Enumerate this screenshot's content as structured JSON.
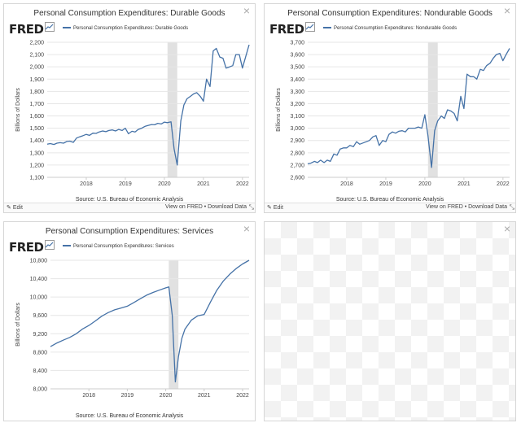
{
  "panels": [
    {
      "title": "Personal Consumption Expenditures: Durable Goods",
      "logo_text": "FRED",
      "legend": "Personal Consumption Expenditures: Durable Goods",
      "source": "Source: U.S. Bureau of Economic Analysis",
      "edit_label": "Edit",
      "view_label": "View on FRED",
      "separator": " • ",
      "download_label": "Download Data",
      "close_icon": "×",
      "chart_data": {
        "type": "line",
        "ylabel": "Billions of Dollars",
        "ylim": [
          1100,
          2200
        ],
        "yticks": [
          1100,
          1200,
          1300,
          1400,
          1500,
          1600,
          1700,
          1800,
          1900,
          2000,
          2100,
          2200
        ],
        "ytick_labels": [
          "1,100",
          "1,200",
          "1,300",
          "1,400",
          "1,500",
          "1,600",
          "1,700",
          "1,800",
          "1,900",
          "2,000",
          "2,100",
          "2,200"
        ],
        "xlim": [
          2017.0,
          2022.17
        ],
        "xticks": [
          2018,
          2019,
          2020,
          2021,
          2022
        ],
        "recession": [
          2020.08,
          2020.33
        ],
        "series": [
          {
            "color": "#4572a7",
            "x": [
              2017.0,
              2017.08,
              2017.17,
              2017.25,
              2017.33,
              2017.42,
              2017.5,
              2017.58,
              2017.67,
              2017.75,
              2017.83,
              2017.92,
              2018.0,
              2018.08,
              2018.17,
              2018.25,
              2018.33,
              2018.42,
              2018.5,
              2018.58,
              2018.67,
              2018.75,
              2018.83,
              2018.92,
              2019.0,
              2019.08,
              2019.17,
              2019.25,
              2019.33,
              2019.42,
              2019.5,
              2019.58,
              2019.67,
              2019.75,
              2019.83,
              2019.92,
              2020.0,
              2020.08,
              2020.17,
              2020.25,
              2020.33,
              2020.42,
              2020.5,
              2020.58,
              2020.67,
              2020.75,
              2020.83,
              2020.92,
              2021.0,
              2021.08,
              2021.17,
              2021.25,
              2021.33,
              2021.42,
              2021.5,
              2021.58,
              2021.67,
              2021.75,
              2021.83,
              2021.92,
              2022.0,
              2022.08,
              2022.17
            ],
            "y": [
              1370,
              1375,
              1368,
              1378,
              1382,
              1378,
              1392,
              1395,
              1385,
              1420,
              1430,
              1440,
              1450,
              1442,
              1460,
              1458,
              1470,
              1478,
              1472,
              1482,
              1486,
              1478,
              1490,
              1482,
              1500,
              1455,
              1475,
              1470,
              1490,
              1500,
              1515,
              1522,
              1530,
              1528,
              1540,
              1535,
              1550,
              1545,
              1552,
              1330,
              1200,
              1560,
              1690,
              1740,
              1760,
              1780,
              1790,
              1760,
              1720,
              1900,
              1840,
              2130,
              2150,
              2080,
              2070,
              1990,
              2000,
              2010,
              2100,
              2100,
              1990,
              2080,
              2180
            ]
          }
        ]
      }
    },
    {
      "title": "Personal Consumption Expenditures: Nondurable Goods",
      "logo_text": "FRED",
      "legend": "Personal Consumption Expenditures: Nondurable Goods",
      "source": "Source: U.S. Bureau of Economic Analysis",
      "edit_label": "Edit",
      "view_label": "View on FRED",
      "separator": " • ",
      "download_label": "Download Data",
      "close_icon": "×",
      "chart_data": {
        "type": "line",
        "ylabel": "Billions of Dollars",
        "ylim": [
          2600,
          3700
        ],
        "yticks": [
          2600,
          2700,
          2800,
          2900,
          3000,
          3100,
          3200,
          3300,
          3400,
          3500,
          3600,
          3700
        ],
        "ytick_labels": [
          "2,600",
          "2,700",
          "2,800",
          "2,900",
          "3,000",
          "3,100",
          "3,200",
          "3,300",
          "3,400",
          "3,500",
          "3,600",
          "3,700"
        ],
        "xlim": [
          2017.0,
          2022.17
        ],
        "xticks": [
          2018,
          2019,
          2020,
          2021,
          2022
        ],
        "recession": [
          2020.08,
          2020.33
        ],
        "series": [
          {
            "color": "#4572a7",
            "x": [
              2017.0,
              2017.08,
              2017.17,
              2017.25,
              2017.33,
              2017.42,
              2017.5,
              2017.58,
              2017.67,
              2017.75,
              2017.83,
              2017.92,
              2018.0,
              2018.08,
              2018.17,
              2018.25,
              2018.33,
              2018.42,
              2018.5,
              2018.58,
              2018.67,
              2018.75,
              2018.83,
              2018.92,
              2019.0,
              2019.08,
              2019.17,
              2019.25,
              2019.33,
              2019.42,
              2019.5,
              2019.58,
              2019.67,
              2019.75,
              2019.83,
              2019.92,
              2020.0,
              2020.08,
              2020.17,
              2020.25,
              2020.33,
              2020.42,
              2020.5,
              2020.58,
              2020.67,
              2020.75,
              2020.83,
              2020.92,
              2021.0,
              2021.08,
              2021.17,
              2021.25,
              2021.33,
              2021.42,
              2021.5,
              2021.58,
              2021.67,
              2021.75,
              2021.83,
              2021.92,
              2022.0,
              2022.08,
              2022.17
            ],
            "y": [
              2710,
              2715,
              2730,
              2720,
              2740,
              2720,
              2740,
              2730,
              2790,
              2780,
              2830,
              2840,
              2840,
              2860,
              2850,
              2890,
              2870,
              2880,
              2890,
              2900,
              2930,
              2940,
              2860,
              2900,
              2890,
              2950,
              2970,
              2960,
              2975,
              2980,
              2970,
              3000,
              3000,
              3000,
              3010,
              3000,
              3110,
              2940,
              2680,
              2980,
              3060,
              3100,
              3080,
              3150,
              3140,
              3120,
              3060,
              3260,
              3160,
              3440,
              3420,
              3420,
              3400,
              3480,
              3470,
              3510,
              3530,
              3570,
              3600,
              3610,
              3550,
              3600,
              3650
            ]
          }
        ]
      }
    },
    {
      "title": "Personal Consumption Expenditures: Services",
      "logo_text": "FRED",
      "legend": "Personal Consumption Expenditures: Services",
      "source": "Source: U.S. Bureau of Economic Analysis",
      "close_icon": "×",
      "chart_data": {
        "type": "line",
        "ylabel": "Billions of Dollars",
        "ylim": [
          8000,
          10800
        ],
        "yticks": [
          8000,
          8400,
          8800,
          9200,
          9600,
          10000,
          10400,
          10800
        ],
        "ytick_labels": [
          "8,000",
          "8,400",
          "8,800",
          "9,200",
          "9,600",
          "10,000",
          "10,400",
          "10,800"
        ],
        "xlim": [
          2017.0,
          2022.17
        ],
        "xticks": [
          2018,
          2019,
          2020,
          2021,
          2022
        ],
        "recession": [
          2020.08,
          2020.33
        ],
        "series": [
          {
            "color": "#4572a7",
            "x": [
              2017.0,
              2017.17,
              2017.33,
              2017.5,
              2017.67,
              2017.83,
              2018.0,
              2018.17,
              2018.33,
              2018.5,
              2018.67,
              2018.83,
              2019.0,
              2019.17,
              2019.33,
              2019.5,
              2019.67,
              2019.83,
              2020.0,
              2020.08,
              2020.17,
              2020.25,
              2020.33,
              2020.42,
              2020.5,
              2020.67,
              2020.83,
              2021.0,
              2021.17,
              2021.33,
              2021.5,
              2021.67,
              2021.83,
              2022.0,
              2022.17
            ],
            "y": [
              8920,
              9000,
              9060,
              9120,
              9200,
              9300,
              9380,
              9480,
              9580,
              9660,
              9720,
              9760,
              9800,
              9880,
              9960,
              10040,
              10100,
              10150,
              10200,
              10220,
              9600,
              8150,
              8700,
              9100,
              9300,
              9500,
              9590,
              9620,
              9900,
              10150,
              10350,
              10500,
              10620,
              10720,
              10800
            ]
          }
        ]
      }
    }
  ],
  "empty_panel": {
    "close_icon": "×"
  }
}
